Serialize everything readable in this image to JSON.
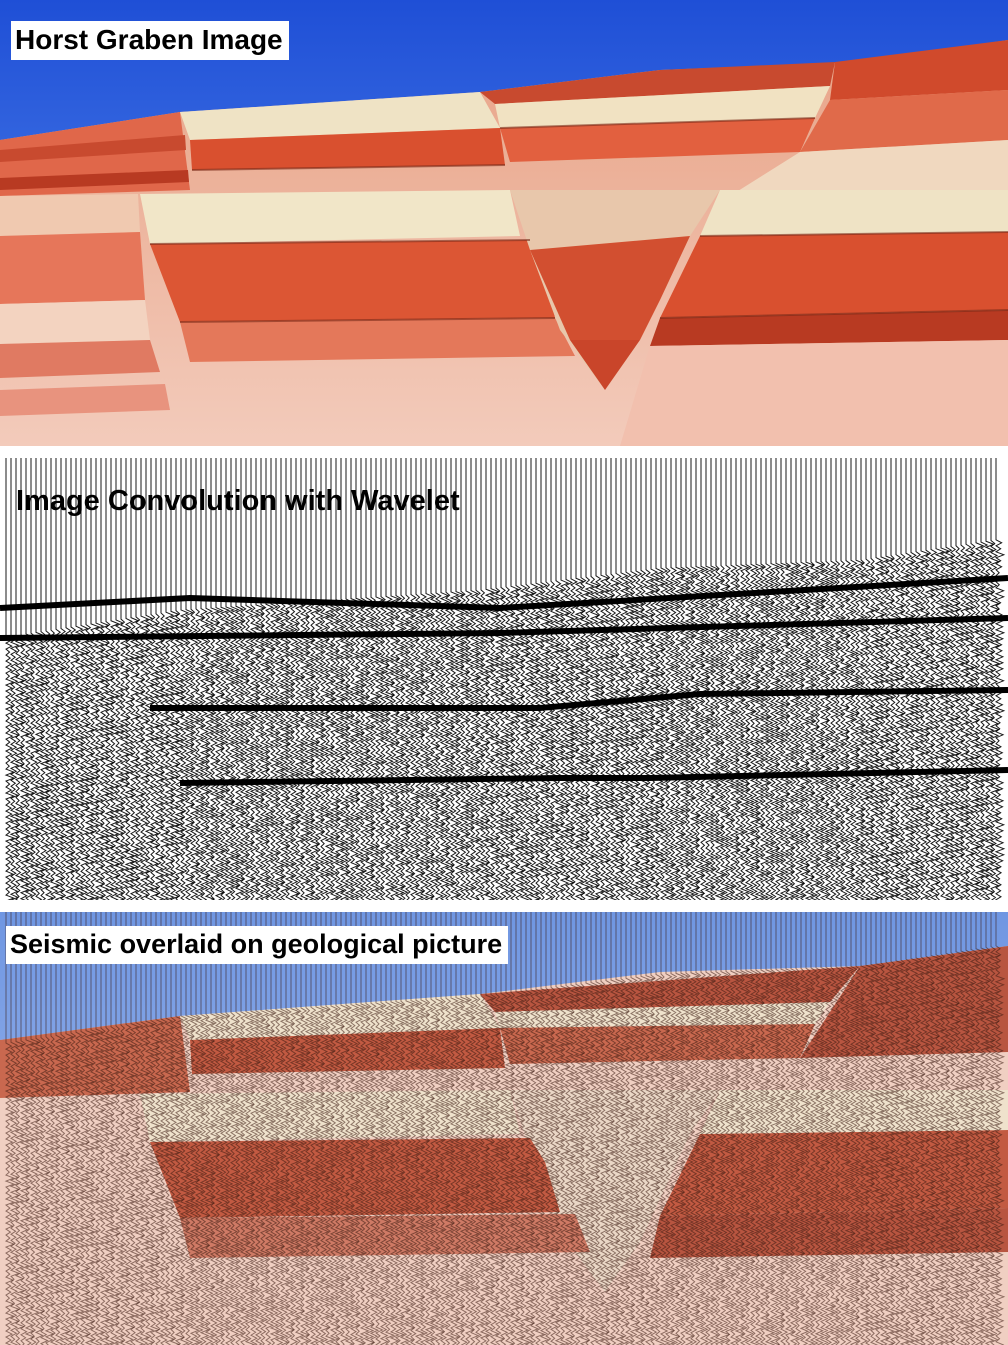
{
  "panels": {
    "photo": {
      "title": "Horst Graben Image"
    },
    "seismic": {
      "title": "Image Convolution with Wavelet"
    },
    "overlay": {
      "title": "Seismic overlaid on geological picture"
    }
  },
  "colors": {
    "sky": "#2f63e0",
    "sky_light": "#5b8ff0",
    "red_layer": "#d9502f",
    "dark_red": "#b83a22",
    "cream_layer": "#efe3c5",
    "pink_layer": "#f0b8a6",
    "overlay_sky": "#7aa0e6",
    "overlay_red": "#c9684f",
    "overlay_cream": "#efe2cc",
    "wiggle": "#000000"
  },
  "icons": {
    "photo": "horst-graben-photo",
    "seismic": "seismic-wiggle-traces",
    "overlay": "seismic-overlay-photo"
  }
}
